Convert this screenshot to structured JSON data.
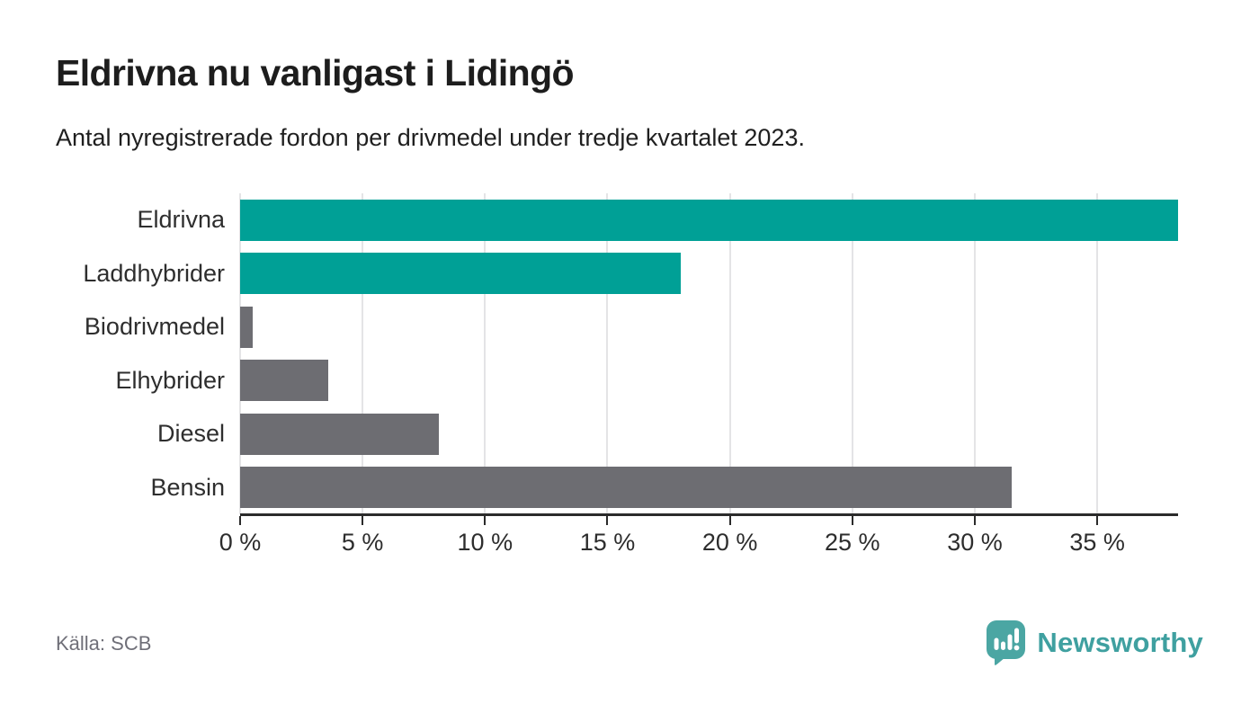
{
  "header": {
    "title": "Eldrivna nu vanligast i Lidingö",
    "subtitle": "Antal nyregistrerade fordon per drivmedel under tredje kvartalet 2023."
  },
  "chart_data": {
    "type": "bar",
    "orientation": "horizontal",
    "title": "Eldrivna nu vanligast i Lidingö",
    "subtitle": "Antal nyregistrerade fordon per drivmedel under tredje kvartalet 2023.",
    "categories": [
      "Eldrivna",
      "Laddhybrider",
      "Biodrivmedel",
      "Elhybrider",
      "Diesel",
      "Bensin"
    ],
    "values": [
      38.3,
      18.0,
      0.5,
      3.6,
      8.1,
      31.5
    ],
    "unit": "%",
    "bar_colors": [
      "#00A096",
      "#00A096",
      "#6D6D72",
      "#6D6D72",
      "#6D6D72",
      "#6D6D72"
    ],
    "xlim": [
      0,
      38.3
    ],
    "x_tick_values": [
      0,
      5,
      10,
      15,
      20,
      25,
      30,
      35
    ],
    "x_tick_labels": [
      "0 %",
      "5 %",
      "10 %",
      "15 %",
      "20 %",
      "25 %",
      "30 %",
      "35 %"
    ],
    "grid": "vertical",
    "legend": "none"
  },
  "footer": {
    "source": "Källa: SCB",
    "brand": "Newsworthy"
  },
  "colors": {
    "accent_teal": "#00A096",
    "neutral_gray": "#6D6D72",
    "brand_teal": "#4BA6A3",
    "grid_gray": "#E4E4E6",
    "axis_dark": "#2B2B2B",
    "source_gray": "#6F6F78"
  }
}
